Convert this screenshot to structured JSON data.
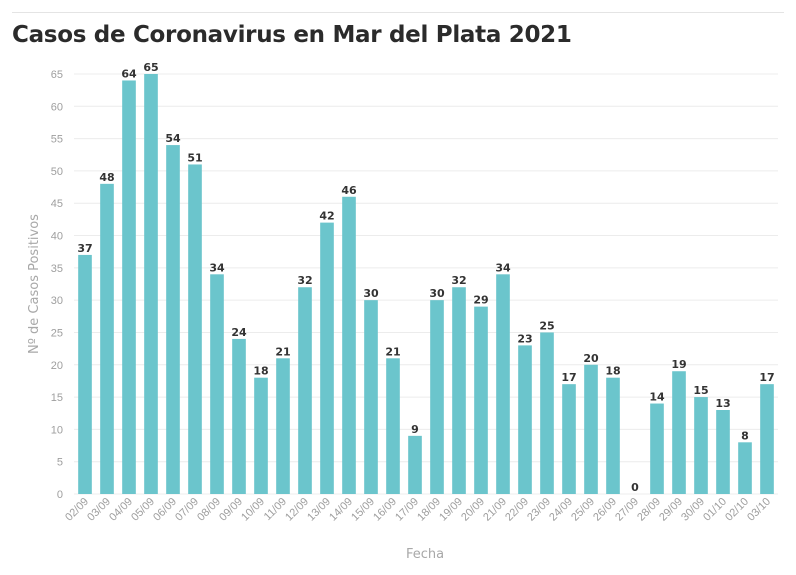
{
  "chart_data": {
    "type": "bar",
    "title": "Casos de Coronavirus en Mar del Plata 2021",
    "xlabel": "Fecha",
    "ylabel": "Nº de Casos Positivos",
    "ylim": [
      0,
      65
    ],
    "yticks": [
      0,
      5,
      10,
      15,
      20,
      25,
      30,
      35,
      40,
      45,
      50,
      55,
      60,
      65
    ],
    "grid": true,
    "bar_color": "#6bc5cc",
    "categories": [
      "02/09",
      "03/09",
      "04/09",
      "05/09",
      "06/09",
      "07/09",
      "08/09",
      "09/09",
      "10/09",
      "11/09",
      "12/09",
      "13/09",
      "14/09",
      "15/09",
      "16/09",
      "17/09",
      "18/09",
      "19/09",
      "20/09",
      "21/09",
      "22/09",
      "23/09",
      "24/09",
      "25/09",
      "26/09",
      "27/09",
      "28/09",
      "29/09",
      "30/09",
      "01/10",
      "02/10",
      "03/10"
    ],
    "values": [
      37,
      48,
      64,
      65,
      54,
      51,
      34,
      24,
      18,
      21,
      32,
      42,
      46,
      30,
      21,
      9,
      30,
      32,
      29,
      34,
      23,
      25,
      17,
      20,
      18,
      0,
      14,
      19,
      15,
      13,
      8,
      17
    ]
  }
}
